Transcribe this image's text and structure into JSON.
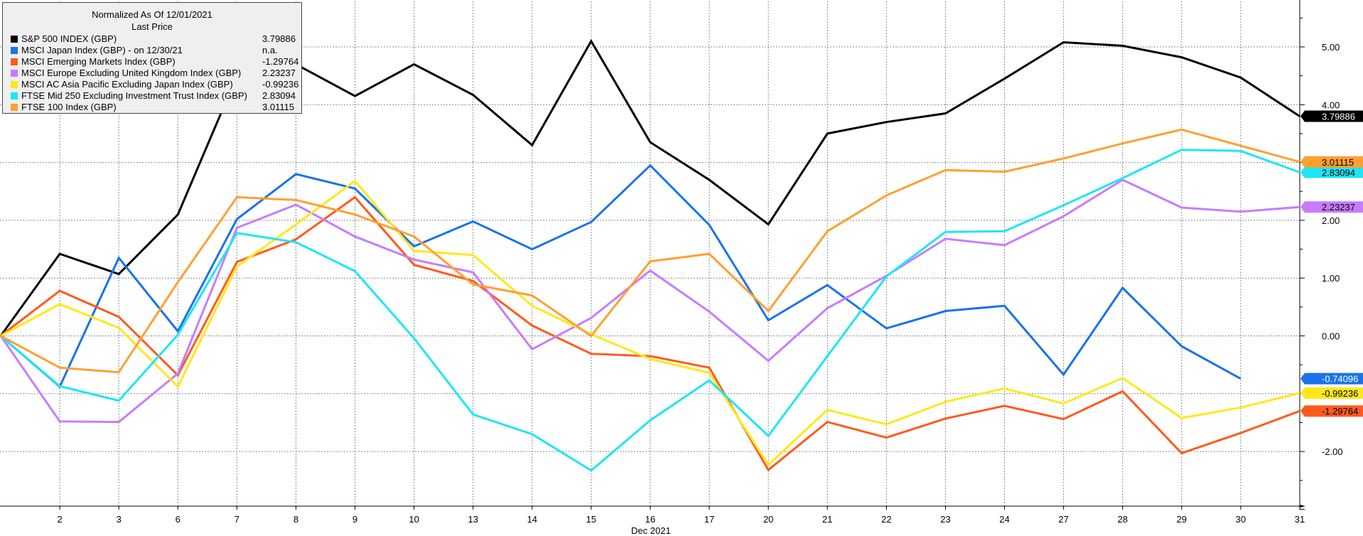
{
  "legend": {
    "title": "Normalized As Of 12/01/2021",
    "subtitle": "Last Price",
    "items": [
      {
        "name": "S&P 500 INDEX (GBP)",
        "value": "3.79886",
        "color": "#000000"
      },
      {
        "name": "MSCI Japan Index (GBP)  -  on 12/30/21",
        "value": "n.a.",
        "color": "#1a73e8"
      },
      {
        "name": "MSCI Emerging Markets Index (GBP)",
        "value": "-1.29764",
        "color": "#ff5a1e"
      },
      {
        "name": "MSCI Europe Excluding United Kingdom Index (GBP)",
        "value": "2.23237",
        "color": "#c77cff"
      },
      {
        "name": "MSCI AC Asia Pacific Excluding Japan Index (GBP)",
        "value": "-0.99236",
        "color": "#ffe81a"
      },
      {
        "name": "FTSE Mid 250 Excluding Investment Trust Index (GBP)",
        "value": "2.83094",
        "color": "#1ee6f5"
      },
      {
        "name": "FTSE 100 Index (GBP)",
        "value": "3.01115",
        "color": "#ffa030"
      }
    ]
  },
  "chart_data": {
    "type": "line",
    "xlabel": "Dec 2021",
    "x": [
      "1",
      "2",
      "3",
      "6",
      "7",
      "8",
      "9",
      "10",
      "13",
      "14",
      "15",
      "16",
      "17",
      "20",
      "21",
      "22",
      "23",
      "24",
      "27",
      "28",
      "29",
      "30",
      "31"
    ],
    "x_tick_labels": [
      "2",
      "3",
      "6",
      "7",
      "8",
      "9",
      "10",
      "13",
      "14",
      "15",
      "16",
      "17",
      "20",
      "21",
      "22",
      "23",
      "24",
      "27",
      "28",
      "29",
      "30",
      "31"
    ],
    "ylim": [
      -3.0,
      5.8
    ],
    "y_ticks": [
      "5.00",
      "4.00",
      "3.00",
      "2.00",
      "1.00",
      "0.00",
      "-1.00",
      "-2.00"
    ],
    "grid": true,
    "y_axis_side": "right",
    "series": [
      {
        "name": "S&P 500 INDEX (GBP)",
        "color": "#000000",
        "last_label": "3.79886",
        "values": [
          0.0,
          1.42,
          1.07,
          2.1,
          4.5,
          4.7,
          4.15,
          4.7,
          4.17,
          3.3,
          5.1,
          3.35,
          2.7,
          1.93,
          3.5,
          3.7,
          3.85,
          4.45,
          5.08,
          5.02,
          4.82,
          4.47,
          3.8
        ]
      },
      {
        "name": "MSCI Japan Index (GBP)  -  on 12/30/21",
        "color": "#1a73e8",
        "last_label": "-0.74096",
        "values": [
          0.0,
          -0.88,
          1.35,
          0.08,
          2.02,
          2.8,
          2.55,
          1.55,
          1.98,
          1.5,
          1.97,
          2.95,
          1.92,
          0.27,
          0.88,
          0.13,
          0.43,
          0.52,
          -0.67,
          0.83,
          -0.18,
          -0.74,
          null
        ]
      },
      {
        "name": "MSCI Emerging Markets Index (GBP)",
        "color": "#ff5a1e",
        "last_label": "-1.29764",
        "values": [
          0.0,
          0.78,
          0.33,
          -0.68,
          1.28,
          1.67,
          2.4,
          1.23,
          0.95,
          0.18,
          -0.31,
          -0.35,
          -0.55,
          -2.32,
          -1.49,
          -1.76,
          -1.43,
          -1.21,
          -1.44,
          -0.96,
          -2.03,
          -1.68,
          -1.3
        ]
      },
      {
        "name": "MSCI Europe Excluding United Kingdom Index (GBP)",
        "color": "#c77cff",
        "last_label": "2.23237",
        "values": [
          0.0,
          -1.48,
          -1.49,
          -0.65,
          1.87,
          2.27,
          1.72,
          1.32,
          1.1,
          -0.23,
          0.31,
          1.13,
          0.42,
          -0.43,
          0.48,
          1.04,
          1.68,
          1.57,
          2.07,
          2.7,
          2.22,
          2.15,
          2.23
        ]
      },
      {
        "name": "MSCI AC Asia Pacific Excluding Japan Index (GBP)",
        "color": "#ffe81a",
        "last_label": "-0.99236",
        "values": [
          0.0,
          0.55,
          0.14,
          -0.88,
          1.2,
          1.93,
          2.68,
          1.47,
          1.4,
          0.52,
          0.03,
          -0.4,
          -0.64,
          -2.23,
          -1.28,
          -1.53,
          -1.14,
          -0.91,
          -1.17,
          -0.73,
          -1.42,
          -1.24,
          -0.99
        ]
      },
      {
        "name": "FTSE Mid 250 Excluding Investment Trust Index (GBP)",
        "color": "#1ee6f5",
        "last_label": "2.83094",
        "values": [
          0.0,
          -0.87,
          -1.12,
          0.02,
          1.78,
          1.62,
          1.12,
          -0.04,
          -1.36,
          -1.7,
          -2.33,
          -1.46,
          -0.77,
          -1.73,
          -0.35,
          1.03,
          1.8,
          1.81,
          2.26,
          2.73,
          3.22,
          3.2,
          2.83
        ]
      },
      {
        "name": "FTSE 100 Index (GBP)",
        "color": "#ffa030",
        "last_label": "3.01115",
        "values": [
          0.0,
          -0.55,
          -0.63,
          0.93,
          2.4,
          2.35,
          2.1,
          1.72,
          0.89,
          0.7,
          0.0,
          1.29,
          1.42,
          0.43,
          1.81,
          2.43,
          2.87,
          2.84,
          3.07,
          3.33,
          3.57,
          3.29,
          3.01
        ]
      }
    ]
  }
}
